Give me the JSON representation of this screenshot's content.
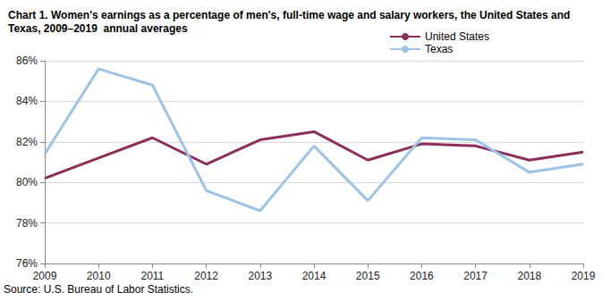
{
  "chart_data": {
    "type": "line",
    "title": "Chart 1. Women's earnings as a percentage of men's, full-time wage and salary workers, the United States and Texas, 2009–2019  annual averages",
    "annotations": [
      "Source: U.S. Bureau of Labor Statistics."
    ],
    "categories": [
      "2009",
      "2010",
      "2011",
      "2012",
      "2013",
      "2014",
      "2015",
      "2016",
      "2017",
      "2018",
      "2019"
    ],
    "series": [
      {
        "name": "United States",
        "color": "#8c2d5a",
        "values": [
          80.2,
          81.2,
          82.2,
          80.9,
          82.1,
          82.5,
          81.1,
          81.9,
          81.8,
          81.1,
          81.5
        ]
      },
      {
        "name": "Texas",
        "color": "#9dc3e6",
        "values": [
          81.4,
          85.6,
          84.8,
          79.6,
          78.6,
          81.8,
          79.1,
          82.2,
          82.1,
          80.5,
          80.9
        ]
      }
    ],
    "ylim": [
      76,
      86
    ],
    "yticks": [
      {
        "value": 76,
        "label": "76%"
      },
      {
        "value": 78,
        "label": "78%"
      },
      {
        "value": 80,
        "label": "80%"
      },
      {
        "value": 82,
        "label": "82%"
      },
      {
        "value": 84,
        "label": "84%"
      },
      {
        "value": 86,
        "label": "86%"
      }
    ],
    "grid": true,
    "legend": "top-right"
  }
}
